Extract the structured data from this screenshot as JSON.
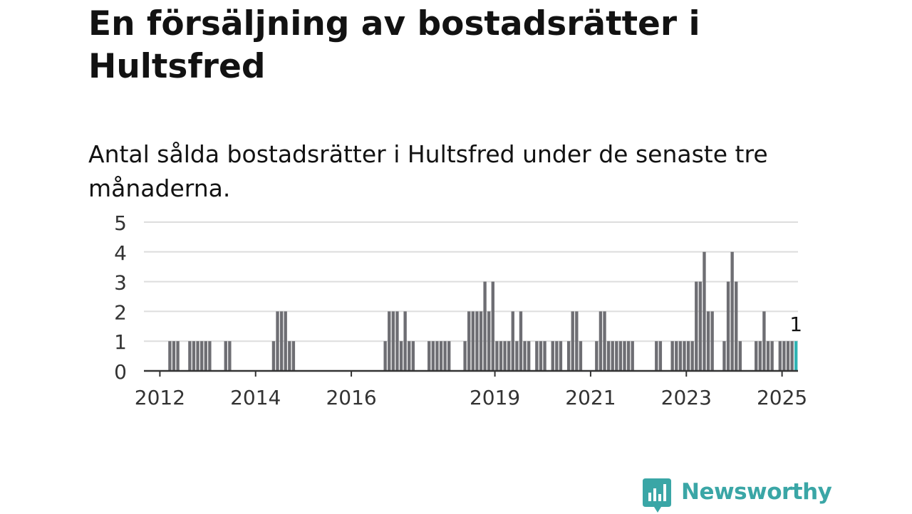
{
  "title": "En försäljning av bostadsrätter i Hultsfred",
  "subtitle": "Antal sålda bostadsrätter i Hultsfred under de senaste tre månaderna.",
  "brand": {
    "name": "Newsworthy",
    "color": "#3aa6a6",
    "icon": "newsworthy-logo-icon"
  },
  "colors": {
    "bar": "#6e6e73",
    "highlight": "#2fb3b3",
    "grid": "#dddddd",
    "axis": "#333333"
  },
  "chart_data": {
    "type": "bar",
    "ylim": [
      0,
      5
    ],
    "yticks": [
      0,
      1,
      2,
      3,
      4,
      5
    ],
    "xticks": [
      "2012",
      "2014",
      "2016",
      "2019",
      "2021",
      "2023",
      "2025"
    ],
    "xlim": [
      "2011-09",
      "2025-05"
    ],
    "grid": true,
    "annotation": {
      "date": "2025-04",
      "text": "1"
    },
    "highlight": "2025-04",
    "data": [
      [
        "2012-03",
        1
      ],
      [
        "2012-04",
        1
      ],
      [
        "2012-05",
        1
      ],
      [
        "2012-08",
        1
      ],
      [
        "2012-09",
        1
      ],
      [
        "2012-10",
        1
      ],
      [
        "2012-11",
        1
      ],
      [
        "2012-12",
        1
      ],
      [
        "2013-01",
        1
      ],
      [
        "2013-05",
        1
      ],
      [
        "2013-06",
        1
      ],
      [
        "2014-05",
        1
      ],
      [
        "2014-06",
        2
      ],
      [
        "2014-07",
        2
      ],
      [
        "2014-08",
        2
      ],
      [
        "2014-09",
        1
      ],
      [
        "2014-10",
        1
      ],
      [
        "2016-09",
        1
      ],
      [
        "2016-10",
        2
      ],
      [
        "2016-11",
        2
      ],
      [
        "2016-12",
        2
      ],
      [
        "2017-01",
        1
      ],
      [
        "2017-02",
        2
      ],
      [
        "2017-03",
        1
      ],
      [
        "2017-04",
        1
      ],
      [
        "2017-08",
        1
      ],
      [
        "2017-09",
        1
      ],
      [
        "2017-10",
        1
      ],
      [
        "2017-11",
        1
      ],
      [
        "2017-12",
        1
      ],
      [
        "2018-01",
        1
      ],
      [
        "2018-05",
        1
      ],
      [
        "2018-06",
        2
      ],
      [
        "2018-07",
        2
      ],
      [
        "2018-08",
        2
      ],
      [
        "2018-09",
        2
      ],
      [
        "2018-10",
        3
      ],
      [
        "2018-11",
        2
      ],
      [
        "2018-12",
        3
      ],
      [
        "2019-01",
        1
      ],
      [
        "2019-02",
        1
      ],
      [
        "2019-03",
        1
      ],
      [
        "2019-04",
        1
      ],
      [
        "2019-05",
        2
      ],
      [
        "2019-06",
        1
      ],
      [
        "2019-07",
        2
      ],
      [
        "2019-08",
        1
      ],
      [
        "2019-09",
        1
      ],
      [
        "2019-11",
        1
      ],
      [
        "2019-12",
        1
      ],
      [
        "2020-01",
        1
      ],
      [
        "2020-03",
        1
      ],
      [
        "2020-04",
        1
      ],
      [
        "2020-05",
        1
      ],
      [
        "2020-07",
        1
      ],
      [
        "2020-08",
        2
      ],
      [
        "2020-09",
        2
      ],
      [
        "2020-10",
        1
      ],
      [
        "2021-02",
        1
      ],
      [
        "2021-03",
        2
      ],
      [
        "2021-04",
        2
      ],
      [
        "2021-05",
        1
      ],
      [
        "2021-06",
        1
      ],
      [
        "2021-07",
        1
      ],
      [
        "2021-08",
        1
      ],
      [
        "2021-09",
        1
      ],
      [
        "2021-10",
        1
      ],
      [
        "2021-11",
        1
      ],
      [
        "2022-05",
        1
      ],
      [
        "2022-06",
        1
      ],
      [
        "2022-09",
        1
      ],
      [
        "2022-10",
        1
      ],
      [
        "2022-11",
        1
      ],
      [
        "2022-12",
        1
      ],
      [
        "2023-01",
        1
      ],
      [
        "2023-02",
        1
      ],
      [
        "2023-03",
        3
      ],
      [
        "2023-04",
        3
      ],
      [
        "2023-05",
        4
      ],
      [
        "2023-06",
        2
      ],
      [
        "2023-07",
        2
      ],
      [
        "2023-10",
        1
      ],
      [
        "2023-11",
        3
      ],
      [
        "2023-12",
        4
      ],
      [
        "2024-01",
        3
      ],
      [
        "2024-02",
        1
      ],
      [
        "2024-06",
        1
      ],
      [
        "2024-07",
        1
      ],
      [
        "2024-08",
        2
      ],
      [
        "2024-09",
        1
      ],
      [
        "2024-10",
        1
      ],
      [
        "2024-12",
        1
      ],
      [
        "2025-01",
        1
      ],
      [
        "2025-02",
        1
      ],
      [
        "2025-03",
        1
      ],
      [
        "2025-04",
        1
      ]
    ]
  }
}
